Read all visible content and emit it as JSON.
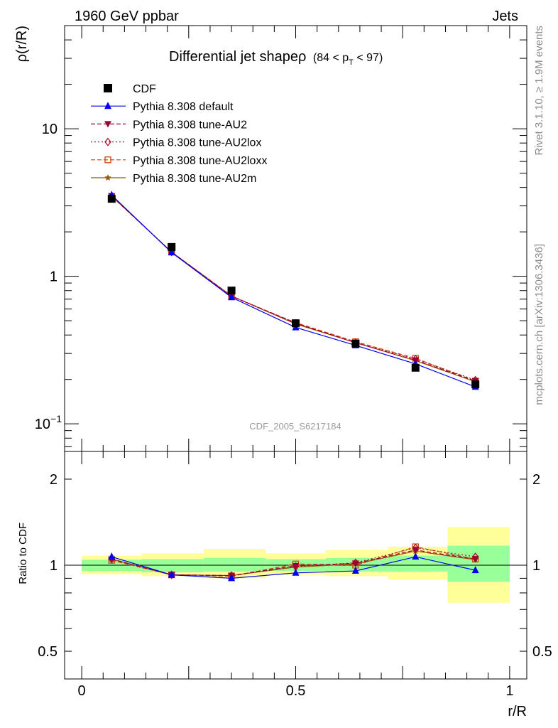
{
  "header": {
    "left": "1960 GeV ppbar",
    "right": "Jets"
  },
  "title": {
    "main": "Differential jet shapeρ",
    "range_prefix": "(84 < p",
    "range_sub": "T",
    "range_suffix": " < 97)"
  },
  "side_labels": {
    "rivet": "Rivet 3.1.10, ≥ 1.9M events",
    "mcplots": "mcplots.cern.ch [arXiv:1306.3436]"
  },
  "watermark": "CDF_2005_S6217184",
  "colors": {
    "cdf": "#000000",
    "default": "#0000ee",
    "au2": "#990033",
    "au2lox": "#aa1133",
    "au2loxx": "#cc4411",
    "au2m": "#995500",
    "band_inner": "#99ff99",
    "band_outer": "#ffff99"
  },
  "chart_data": [
    {
      "type": "line",
      "panel": "main",
      "xlabel": "",
      "ylabel": "ρ(r/R)",
      "xlim": [
        -0.04,
        1.04
      ],
      "ylim": [
        0.065,
        50
      ],
      "log_y": true,
      "yticks": [
        {
          "value": 0.1,
          "base": "10",
          "exp": "−1"
        },
        {
          "value": 1,
          "label": "1"
        },
        {
          "value": 10,
          "label": "10"
        }
      ],
      "x": [
        0.07,
        0.21,
        0.35,
        0.5,
        0.64,
        0.78,
        0.92
      ],
      "series": [
        {
          "name": "CDF",
          "key": "cdf",
          "marker": "square",
          "values": [
            3.35,
            1.58,
            0.8,
            0.48,
            0.35,
            0.24,
            0.185
          ]
        },
        {
          "name": "Pythia 8.308 default",
          "key": "default",
          "marker": "triangle-up",
          "line": "solid",
          "values": [
            3.55,
            1.45,
            0.72,
            0.45,
            0.34,
            0.255,
            0.178
          ]
        },
        {
          "name": "Pythia 8.308 tune-AU2",
          "key": "au2",
          "marker": "triangle-down",
          "line": "dashed",
          "values": [
            3.5,
            1.46,
            0.735,
            0.48,
            0.355,
            0.27,
            0.195
          ]
        },
        {
          "name": "Pythia 8.308 tune-AU2lox",
          "key": "au2lox",
          "marker": "diamond",
          "line": "dotted",
          "values": [
            3.5,
            1.46,
            0.735,
            0.48,
            0.355,
            0.275,
            0.198
          ]
        },
        {
          "name": "Pythia 8.308 tune-AU2loxx",
          "key": "au2loxx",
          "marker": "square-open",
          "line": "dashed",
          "values": [
            3.48,
            1.46,
            0.73,
            0.485,
            0.36,
            0.278,
            0.195
          ]
        },
        {
          "name": "Pythia 8.308 tune-AU2m",
          "key": "au2m",
          "marker": "star",
          "line": "solid",
          "values": [
            3.5,
            1.46,
            0.735,
            0.475,
            0.355,
            0.268,
            0.193
          ]
        }
      ]
    },
    {
      "type": "line",
      "panel": "ratio",
      "xlabel": "r/R",
      "ylabel": "Ratio to CDF",
      "xlim": [
        -0.04,
        1.04
      ],
      "ylim": [
        0.4,
        2.5
      ],
      "log_y": true,
      "yticks": [
        {
          "value": 0.5,
          "label": "0.5"
        },
        {
          "value": 1,
          "label": "1"
        },
        {
          "value": 2,
          "label": "2"
        }
      ],
      "xticks": [
        {
          "value": 0,
          "label": "0"
        },
        {
          "value": 0.5,
          "label": "0.5"
        },
        {
          "value": 1,
          "label": "1"
        }
      ],
      "bands": [
        {
          "x0": 0.0,
          "x1": 0.14,
          "inner": [
            0.955,
            1.045
          ],
          "outer": [
            0.93,
            1.08
          ]
        },
        {
          "x0": 0.14,
          "x1": 0.285,
          "inner": [
            0.945,
            1.05
          ],
          "outer": [
            0.915,
            1.1
          ]
        },
        {
          "x0": 0.285,
          "x1": 0.43,
          "inner": [
            0.95,
            1.06
          ],
          "outer": [
            0.9,
            1.14
          ]
        },
        {
          "x0": 0.43,
          "x1": 0.57,
          "inner": [
            0.955,
            1.05
          ],
          "outer": [
            0.925,
            1.1
          ]
        },
        {
          "x0": 0.57,
          "x1": 0.715,
          "inner": [
            0.95,
            1.06
          ],
          "outer": [
            0.915,
            1.13
          ]
        },
        {
          "x0": 0.715,
          "x1": 0.855,
          "inner": [
            0.95,
            1.08
          ],
          "outer": [
            0.89,
            1.16
          ]
        },
        {
          "x0": 0.855,
          "x1": 1.0,
          "inner": [
            0.875,
            1.17
          ],
          "outer": [
            0.74,
            1.36
          ]
        }
      ],
      "x": [
        0.07,
        0.21,
        0.35,
        0.5,
        0.64,
        0.78,
        0.92
      ],
      "series": [
        {
          "name": "Pythia 8.308 default",
          "key": "default",
          "values": [
            1.07,
            0.925,
            0.9,
            0.94,
            0.955,
            1.07,
            0.96
          ]
        },
        {
          "name": "Pythia 8.308 tune-AU2",
          "key": "au2",
          "values": [
            1.05,
            0.925,
            0.92,
            0.995,
            1.015,
            1.13,
            1.05
          ]
        },
        {
          "name": "Pythia 8.308 tune-AU2lox",
          "key": "au2lox",
          "values": [
            1.05,
            0.925,
            0.92,
            0.99,
            1.02,
            1.15,
            1.07
          ]
        },
        {
          "name": "Pythia 8.308 tune-AU2loxx",
          "key": "au2loxx",
          "values": [
            1.04,
            0.925,
            0.915,
            1.01,
            1.0,
            1.16,
            1.05
          ]
        },
        {
          "name": "Pythia 8.308 tune-AU2m",
          "key": "au2m",
          "values": [
            1.05,
            0.925,
            0.92,
            0.985,
            1.01,
            1.12,
            1.045
          ]
        }
      ]
    }
  ]
}
